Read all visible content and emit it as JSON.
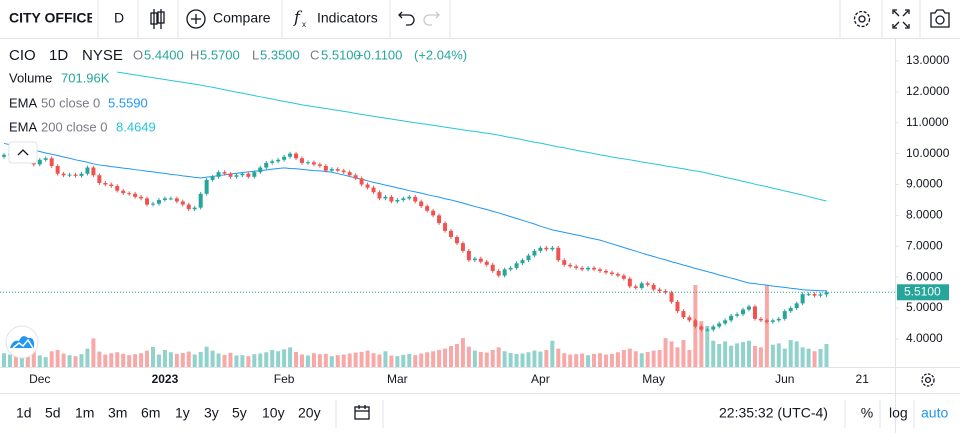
{
  "toolbar": {
    "symbol": "CITY OFFICE",
    "interval": "D",
    "compare": "Compare",
    "indicators": "Indicators"
  },
  "legend": {
    "symbol": "CIO",
    "interval": "1D",
    "exchange": "NYSE",
    "o_prefix": "O",
    "h_prefix": "H",
    "l_prefix": "L",
    "c_prefix": "C",
    "open": {
      "value": 5.44,
      "label": "5.4400"
    },
    "high": {
      "value": 5.57,
      "label": "5.5700"
    },
    "low": {
      "value": 5.35,
      "label": "5.3500"
    },
    "close": {
      "value": 5.51,
      "label": "5.5100"
    },
    "change": {
      "value": 0.11,
      "label": "+0.1100"
    },
    "change_percent": {
      "value": 2.04,
      "label": "(+2.04%)"
    }
  },
  "chart_data": {
    "type": "candlestick",
    "log_scale": false,
    "grid": false,
    "up_color": "#26a69a",
    "down_color": "#ef5350",
    "categories": [
      null,
      null,
      null,
      null,
      null,
      null,
      "Dec",
      null,
      null,
      null,
      null,
      null,
      null,
      null,
      null,
      null,
      null,
      null,
      null,
      null,
      null,
      null,
      null,
      null,
      null,
      null,
      null,
      "2023",
      null,
      null,
      null,
      null,
      null,
      null,
      null,
      null,
      null,
      null,
      null,
      null,
      null,
      null,
      null,
      null,
      null,
      null,
      null,
      "Feb",
      null,
      null,
      null,
      null,
      null,
      null,
      null,
      null,
      null,
      null,
      null,
      null,
      null,
      null,
      null,
      null,
      null,
      null,
      "Mar",
      null,
      null,
      null,
      null,
      null,
      null,
      null,
      null,
      null,
      null,
      null,
      null,
      null,
      null,
      null,
      null,
      null,
      null,
      null,
      null,
      null,
      null,
      null,
      "Apr",
      null,
      null,
      null,
      null,
      null,
      null,
      null,
      null,
      null,
      null,
      null,
      null,
      null,
      null,
      null,
      null,
      null,
      null,
      "May",
      null,
      null,
      null,
      null,
      null,
      null,
      null,
      null,
      null,
      null,
      null,
      null,
      null,
      null,
      null,
      null,
      null,
      null,
      null,
      null,
      null,
      "Jun",
      null,
      null,
      null,
      null,
      null,
      null,
      null,
      null,
      null,
      null,
      null,
      null,
      "21",
      null,
      null,
      null,
      null,
      null
    ],
    "ylim": [
      3.09,
      13.68
    ],
    "yticks": [
      {
        "value": 4,
        "label": "4.0000"
      },
      {
        "value": 5,
        "label": "5.0000"
      },
      {
        "value": 6,
        "label": "6.0000"
      },
      {
        "value": 7,
        "label": "7.0000"
      },
      {
        "value": 8,
        "label": "8.0000"
      },
      {
        "value": 9,
        "label": "9.0000"
      },
      {
        "value": 10,
        "label": "10.0000"
      },
      {
        "value": 11,
        "label": "11.0000"
      },
      {
        "value": 12,
        "label": "12.0000"
      },
      {
        "value": 13,
        "label": "13.0000"
      }
    ],
    "ohlc": {
      "open": [
        9.9,
        9.96,
        9.98,
        9.92,
        10.0,
        9.9,
        9.65,
        9.8,
        9.85,
        9.6,
        9.35,
        9.3,
        9.32,
        9.28,
        9.35,
        9.55,
        9.3,
        9.05,
        9.0,
        8.95,
        8.8,
        8.72,
        8.7,
        8.6,
        8.55,
        8.35,
        8.38,
        8.5,
        8.55,
        8.55,
        8.45,
        8.35,
        8.2,
        8.25,
        8.7,
        9.15,
        9.25,
        9.4,
        9.35,
        9.25,
        9.3,
        9.35,
        9.25,
        9.4,
        9.55,
        9.7,
        9.75,
        9.8,
        9.9,
        10.0,
        9.85,
        9.7,
        9.72,
        9.65,
        9.6,
        9.45,
        9.5,
        9.45,
        9.4,
        9.3,
        9.2,
        9.0,
        8.9,
        8.75,
        8.55,
        8.6,
        8.45,
        8.5,
        8.55,
        8.6,
        8.45,
        8.3,
        8.15,
        8.0,
        7.75,
        7.5,
        7.3,
        7.1,
        6.85,
        6.55,
        6.6,
        6.5,
        6.4,
        6.2,
        6.05,
        6.25,
        6.3,
        6.45,
        6.55,
        6.7,
        6.85,
        6.95,
        6.9,
        6.95,
        6.55,
        6.4,
        6.35,
        6.3,
        6.25,
        6.3,
        6.25,
        6.2,
        6.15,
        6.1,
        6.05,
        5.95,
        5.7,
        5.65,
        5.8,
        5.75,
        5.6,
        5.55,
        5.5,
        5.2,
        4.9,
        4.7,
        4.6,
        4.4,
        4.3,
        4.3,
        4.4,
        4.5,
        4.6,
        4.75,
        4.8,
        4.95,
        5.05,
        4.65,
        4.6,
        4.55,
        4.6,
        4.65,
        4.9,
        5.0,
        5.15,
        5.45,
        5.45,
        5.4,
        5.44,
        null,
        null,
        null,
        null,
        null,
        null,
        null,
        null,
        null,
        null,
        null
      ],
      "high": [
        10.02,
        10.04,
        10.04,
        10.06,
        10.06,
        9.96,
        9.86,
        9.91,
        9.91,
        9.66,
        9.41,
        9.38,
        9.38,
        9.41,
        9.61,
        9.61,
        9.36,
        9.11,
        9.06,
        9.01,
        8.86,
        8.78,
        8.76,
        8.66,
        8.61,
        8.44,
        8.56,
        8.61,
        8.61,
        8.61,
        8.51,
        8.41,
        8.31,
        8.76,
        9.21,
        9.31,
        9.46,
        9.46,
        9.41,
        9.36,
        9.41,
        9.41,
        9.46,
        9.61,
        9.76,
        9.81,
        9.86,
        9.96,
        10.06,
        10.06,
        9.91,
        9.78,
        9.78,
        9.71,
        9.66,
        9.56,
        9.56,
        9.51,
        9.46,
        9.36,
        9.26,
        9.06,
        8.96,
        8.81,
        8.66,
        8.66,
        8.56,
        8.61,
        8.66,
        8.66,
        8.51,
        8.36,
        8.21,
        8.06,
        7.81,
        7.56,
        7.36,
        7.16,
        6.91,
        6.66,
        6.66,
        6.56,
        6.46,
        6.26,
        6.31,
        6.36,
        6.51,
        6.61,
        6.76,
        6.91,
        7.01,
        7.01,
        7.01,
        7.01,
        6.61,
        6.46,
        6.41,
        6.36,
        6.36,
        6.36,
        6.31,
        6.26,
        6.21,
        6.16,
        6.11,
        6.01,
        5.76,
        5.86,
        5.86,
        5.81,
        5.66,
        5.61,
        5.56,
        5.26,
        4.96,
        4.76,
        4.66,
        4.46,
        4.36,
        4.46,
        4.56,
        4.66,
        4.81,
        4.86,
        5.01,
        5.11,
        5.11,
        4.71,
        4.66,
        4.66,
        4.71,
        4.96,
        5.06,
        5.21,
        5.51,
        5.51,
        5.51,
        5.5,
        5.57,
        null,
        null,
        null,
        null,
        null,
        null,
        null,
        null,
        null,
        null,
        null
      ],
      "low": [
        9.84,
        9.9,
        9.86,
        9.86,
        9.84,
        9.59,
        9.59,
        9.74,
        9.54,
        9.29,
        9.24,
        9.24,
        9.22,
        9.22,
        9.29,
        9.24,
        8.99,
        8.94,
        8.89,
        8.74,
        8.66,
        8.64,
        8.54,
        8.49,
        8.29,
        8.29,
        8.32,
        8.44,
        8.49,
        8.39,
        8.29,
        8.14,
        8.14,
        8.19,
        8.64,
        9.09,
        9.19,
        9.29,
        9.19,
        9.19,
        9.24,
        9.19,
        9.19,
        9.34,
        9.49,
        9.64,
        9.69,
        9.74,
        9.84,
        9.79,
        9.64,
        9.64,
        9.59,
        9.54,
        9.39,
        9.39,
        9.39,
        9.34,
        9.24,
        9.14,
        8.94,
        8.84,
        8.69,
        8.49,
        8.49,
        8.39,
        8.39,
        8.44,
        8.49,
        8.39,
        8.24,
        8.09,
        7.94,
        7.69,
        7.44,
        7.24,
        7.04,
        6.79,
        6.49,
        6.49,
        6.44,
        6.34,
        6.14,
        5.99,
        5.99,
        6.19,
        6.24,
        6.39,
        6.49,
        6.64,
        6.79,
        6.84,
        6.84,
        6.49,
        6.34,
        6.29,
        6.24,
        6.19,
        6.19,
        6.19,
        6.14,
        6.09,
        6.04,
        5.99,
        5.89,
        5.64,
        5.59,
        5.59,
        5.69,
        5.54,
        5.49,
        5.44,
        5.14,
        4.84,
        4.64,
        4.54,
        4.34,
        4.24,
        4.24,
        4.24,
        4.34,
        4.44,
        4.54,
        4.69,
        4.74,
        4.89,
        4.59,
        4.54,
        4.49,
        4.49,
        4.54,
        4.59,
        4.84,
        4.94,
        5.09,
        5.39,
        5.34,
        5.34,
        5.35,
        null,
        null,
        null,
        null,
        null,
        null,
        null,
        null,
        null,
        null,
        null
      ],
      "close": [
        9.96,
        9.98,
        9.92,
        10.0,
        9.9,
        9.65,
        9.8,
        9.85,
        9.6,
        9.35,
        9.3,
        9.32,
        9.28,
        9.35,
        9.55,
        9.3,
        9.05,
        9.0,
        8.95,
        8.8,
        8.72,
        8.7,
        8.6,
        8.55,
        8.35,
        8.38,
        8.5,
        8.55,
        8.55,
        8.45,
        8.35,
        8.2,
        8.25,
        8.7,
        9.15,
        9.25,
        9.4,
        9.35,
        9.25,
        9.3,
        9.35,
        9.25,
        9.4,
        9.55,
        9.7,
        9.75,
        9.8,
        9.9,
        10.0,
        9.85,
        9.7,
        9.72,
        9.65,
        9.6,
        9.45,
        9.5,
        9.45,
        9.4,
        9.3,
        9.2,
        9.0,
        8.9,
        8.75,
        8.55,
        8.6,
        8.45,
        8.5,
        8.55,
        8.6,
        8.45,
        8.3,
        8.15,
        8.0,
        7.75,
        7.5,
        7.3,
        7.1,
        6.85,
        6.55,
        6.6,
        6.5,
        6.4,
        6.2,
        6.05,
        6.25,
        6.3,
        6.45,
        6.55,
        6.7,
        6.85,
        6.95,
        6.9,
        6.95,
        6.55,
        6.4,
        6.35,
        6.3,
        6.25,
        6.3,
        6.25,
        6.2,
        6.15,
        6.1,
        6.05,
        5.95,
        5.7,
        5.65,
        5.8,
        5.75,
        5.6,
        5.55,
        5.5,
        5.2,
        4.9,
        4.7,
        4.6,
        4.4,
        4.3,
        4.3,
        4.4,
        4.5,
        4.6,
        4.75,
        4.8,
        4.95,
        5.05,
        4.65,
        4.6,
        4.55,
        4.6,
        4.65,
        4.9,
        5.0,
        5.15,
        5.45,
        5.45,
        5.4,
        5.44,
        5.51,
        null,
        null,
        null,
        null,
        null,
        null,
        null,
        null,
        null,
        null,
        null
      ]
    },
    "volume": {
      "name": "Volume",
      "last": {
        "value": 701960,
        "label": "701.96K"
      },
      "values": [
        420000,
        380000,
        450000,
        400000,
        520000,
        610000,
        350000,
        300000,
        480000,
        520000,
        410000,
        360000,
        330000,
        390000,
        560000,
        870000,
        470000,
        380000,
        420000,
        450000,
        400000,
        360000,
        390000,
        420000,
        500000,
        610000,
        380000,
        520000,
        450000,
        400000,
        430000,
        470000,
        380000,
        460000,
        620000,
        500000,
        410000,
        370000,
        430000,
        350000,
        360000,
        330000,
        390000,
        410000,
        450000,
        520000,
        480000,
        540000,
        600000,
        460000,
        380000,
        350000,
        420000,
        390000,
        400000,
        330000,
        360000,
        380000,
        410000,
        440000,
        460000,
        500000,
        420000,
        380000,
        480000,
        350000,
        330000,
        370000,
        400000,
        360000,
        410000,
        450000,
        480000,
        520000,
        560000,
        640000,
        700000,
        880000,
        620000,
        500000,
        460000,
        440000,
        520000,
        600000,
        480000,
        430000,
        400000,
        410000,
        450000,
        500000,
        470000,
        520000,
        800000,
        560000,
        420000,
        380000,
        390000,
        410000,
        360000,
        400000,
        420000,
        380000,
        400000,
        450000,
        520000,
        560000,
        480000,
        420000,
        460000,
        500000,
        520000,
        880000,
        780000,
        600000,
        820000,
        520000,
        2500000,
        1400000,
        1250000,
        800000,
        700000,
        780000,
        650000,
        720000,
        760000,
        800000,
        640000,
        600000,
        2500000,
        680000,
        720000,
        560000,
        820000,
        780000,
        600000,
        560000,
        480000,
        550000,
        701960,
        null,
        null,
        null,
        null,
        null,
        null,
        null,
        null,
        null,
        null,
        null
      ]
    },
    "indicators": [
      {
        "name": "EMA",
        "params": "50 close 0",
        "color": "#2196f3",
        "last": {
          "value": 5.559,
          "label": "5.5590"
        },
        "values": [
          10.33,
          10.29,
          10.24,
          10.2,
          10.15,
          10.11,
          10.07,
          10.02,
          9.98,
          9.94,
          9.89,
          9.85,
          9.8,
          9.76,
          9.72,
          9.67,
          9.63,
          9.61,
          9.58,
          9.56,
          9.53,
          9.51,
          9.48,
          9.46,
          9.43,
          9.41,
          9.38,
          9.36,
          9.33,
          9.31,
          9.28,
          9.26,
          9.23,
          9.21,
          9.24,
          9.26,
          9.29,
          9.31,
          9.34,
          9.36,
          9.39,
          9.41,
          9.43,
          9.45,
          9.47,
          9.5,
          9.52,
          9.54,
          9.52,
          9.51,
          9.49,
          9.47,
          9.45,
          9.44,
          9.42,
          9.4,
          9.35,
          9.31,
          9.26,
          9.21,
          9.17,
          9.12,
          9.07,
          9.03,
          8.98,
          8.94,
          8.89,
          8.85,
          8.8,
          8.76,
          8.72,
          8.67,
          8.63,
          8.59,
          8.54,
          8.5,
          8.45,
          8.4,
          8.34,
          8.29,
          8.24,
          8.19,
          8.13,
          8.08,
          8.02,
          7.96,
          7.9,
          7.84,
          7.78,
          7.72,
          7.65,
          7.59,
          7.53,
          7.49,
          7.45,
          7.41,
          7.37,
          7.33,
          7.28,
          7.24,
          7.2,
          7.14,
          7.08,
          7.02,
          6.96,
          6.9,
          6.84,
          6.78,
          6.72,
          6.67,
          6.61,
          6.56,
          6.5,
          6.45,
          6.39,
          6.34,
          6.28,
          6.23,
          6.18,
          6.13,
          6.07,
          6.02,
          5.97,
          5.92,
          5.86,
          5.81,
          5.79,
          5.76,
          5.74,
          5.71,
          5.69,
          5.67,
          5.64,
          5.62,
          5.59,
          5.58,
          5.57,
          5.56,
          5.559,
          null,
          null,
          null,
          null,
          null,
          null,
          null,
          null,
          null,
          null,
          null
        ]
      },
      {
        "name": "EMA",
        "params": "200 close 0",
        "color": "#26c6da",
        "last": {
          "value": 8.4649,
          "label": "8.4649"
        },
        "values": [
          null,
          null,
          null,
          null,
          null,
          null,
          null,
          null,
          null,
          null,
          null,
          null,
          null,
          null,
          null,
          null,
          null,
          null,
          null,
          12.64,
          12.61,
          12.58,
          12.55,
          12.52,
          12.49,
          12.46,
          12.43,
          12.4,
          12.37,
          12.34,
          12.31,
          12.28,
          12.25,
          12.22,
          12.18,
          12.15,
          12.11,
          12.07,
          12.03,
          11.99,
          11.96,
          11.92,
          11.88,
          11.84,
          11.81,
          11.77,
          11.73,
          11.69,
          11.66,
          11.62,
          11.58,
          11.55,
          11.52,
          11.49,
          11.46,
          11.43,
          11.4,
          11.37,
          11.34,
          11.3,
          11.27,
          11.24,
          11.21,
          11.18,
          11.15,
          11.12,
          11.09,
          11.06,
          11.03,
          11.0,
          10.97,
          10.95,
          10.92,
          10.89,
          10.86,
          10.83,
          10.8,
          10.77,
          10.74,
          10.72,
          10.69,
          10.66,
          10.63,
          10.6,
          10.56,
          10.52,
          10.49,
          10.45,
          10.41,
          10.37,
          10.34,
          10.3,
          10.26,
          10.22,
          10.19,
          10.15,
          10.11,
          10.07,
          10.04,
          10.0,
          9.96,
          9.93,
          9.89,
          9.86,
          9.83,
          9.8,
          9.77,
          9.73,
          9.7,
          9.67,
          9.64,
          9.6,
          9.57,
          9.54,
          9.51,
          9.47,
          9.44,
          9.41,
          9.37,
          9.32,
          9.28,
          9.23,
          9.19,
          9.15,
          9.1,
          9.06,
          9.01,
          8.97,
          8.93,
          8.88,
          8.84,
          8.79,
          8.75,
          8.7,
          8.66,
          8.61,
          8.56,
          8.51,
          8.4649,
          null,
          null,
          null,
          null,
          null,
          null,
          null,
          null,
          null,
          null,
          null
        ]
      }
    ],
    "last_price": {
      "value": 5.51,
      "label": "5.5100"
    }
  },
  "footer": {
    "ranges": [
      "1d",
      "5d",
      "1m",
      "3m",
      "6m",
      "1y",
      "3y",
      "5y",
      "10y",
      "20y"
    ],
    "time": "22:35:32 (UTC-4)",
    "percent": "%",
    "log": "log",
    "auto": "auto"
  }
}
